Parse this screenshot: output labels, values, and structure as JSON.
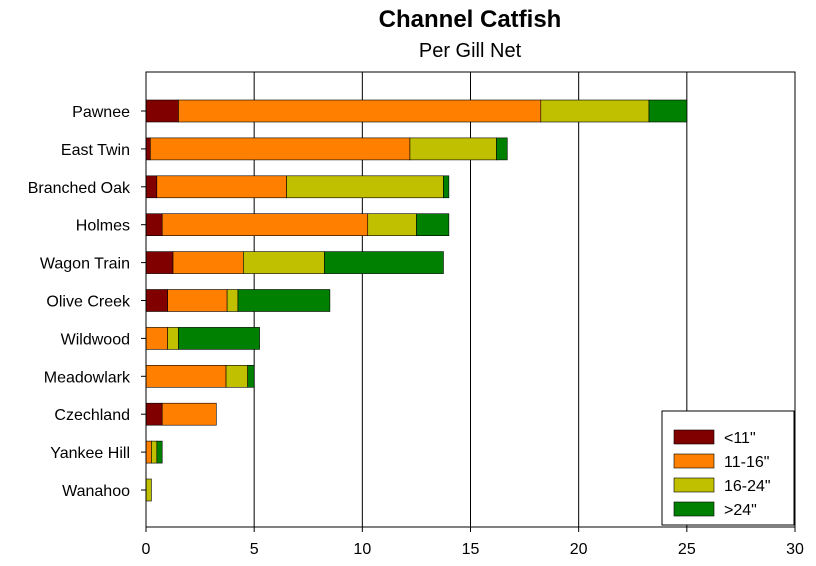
{
  "chart_data": {
    "type": "bar",
    "orientation": "horizontal",
    "stacked": true,
    "title": "Channel Catfish",
    "subtitle": "Per Gill Net",
    "categories": [
      "Pawnee",
      "East Twin",
      "Branched Oak",
      "Holmes",
      "Wagon Train",
      "Olive Creek",
      "Wildwood",
      "Meadowlark",
      "Czechland",
      "Yankee Hill",
      "Wanahoo"
    ],
    "series": [
      {
        "name": "<11\"",
        "color": "#800000",
        "values": [
          1.5,
          0.2,
          0.5,
          0.75,
          1.25,
          1.0,
          0.0,
          0.0,
          0.75,
          0.0,
          0.0
        ]
      },
      {
        "name": "11-16\"",
        "color": "#ff8000",
        "values": [
          16.75,
          12.0,
          6.0,
          9.5,
          3.25,
          2.75,
          1.0,
          3.7,
          2.5,
          0.25,
          0.0
        ]
      },
      {
        "name": "16-24\"",
        "color": "#c0c000",
        "values": [
          5.0,
          4.0,
          7.25,
          2.25,
          3.75,
          0.5,
          0.5,
          1.0,
          0.0,
          0.25,
          0.25
        ]
      },
      {
        "name": ">24\"",
        "color": "#008000",
        "values": [
          1.75,
          0.5,
          0.25,
          1.5,
          5.5,
          4.25,
          3.75,
          0.3,
          0.0,
          0.25,
          0.0
        ]
      }
    ],
    "xlim": [
      0,
      30
    ],
    "xticks": [
      "0",
      "5",
      "10",
      "15",
      "20",
      "25",
      "30"
    ],
    "grid": true,
    "legend_position": "bottom-right"
  }
}
